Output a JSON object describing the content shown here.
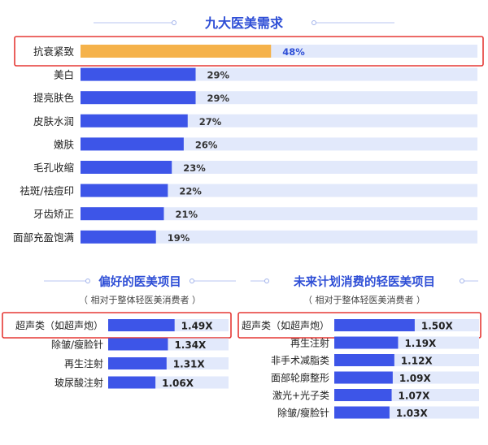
{
  "colors": {
    "bar": "#3d55e8",
    "highlight_bar": "#f5b24a",
    "track": "#e2e9fb",
    "title": "#2f4fd6",
    "frame": "#e53935",
    "label": "#222222"
  },
  "chart_data": [
    {
      "type": "bar",
      "orientation": "horizontal",
      "title": "九大医美需求",
      "categories": [
        "抗衰紧致",
        "美白",
        "提亮肤色",
        "皮肤水润",
        "嫩肤",
        "毛孔收缩",
        "祛斑/祛痘印",
        "牙齿矫正",
        "面部充盈饱满"
      ],
      "values": [
        48,
        29,
        29,
        27,
        26,
        23,
        22,
        21,
        19
      ],
      "data_labels": [
        "48%",
        "29%",
        "29%",
        "27%",
        "26%",
        "23%",
        "22%",
        "21%",
        "19%"
      ],
      "highlight_index": 0,
      "xlim": [
        0,
        100
      ]
    },
    {
      "type": "bar",
      "orientation": "horizontal",
      "title": "偏好的医美项目",
      "subtitle": "（ 相对于整体轻医美消费者 ）",
      "categories": [
        "超声类（如超声炮）",
        "除皱/瘦脸针",
        "再生注射",
        "玻尿酸注射"
      ],
      "values": [
        1.49,
        1.34,
        1.31,
        1.06
      ],
      "data_labels": [
        "1.49X",
        "1.34X",
        "1.31X",
        "1.06X"
      ],
      "highlight_index": 0,
      "xlim": [
        0,
        2.7
      ]
    },
    {
      "type": "bar",
      "orientation": "horizontal",
      "title": "未来计划消费的轻医美项目",
      "subtitle": "（ 相对于整体轻医美消费者 ）",
      "categories": [
        "超声类（如超声炮）",
        "再生注射",
        "非手术减脂类",
        "面部轮廓整形",
        "激光+光子类",
        "除皱/瘦脸针"
      ],
      "values": [
        1.5,
        1.19,
        1.12,
        1.09,
        1.07,
        1.03
      ],
      "data_labels": [
        "1.50X",
        "1.19X",
        "1.12X",
        "1.09X",
        "1.07X",
        "1.03X"
      ],
      "highlight_index": 0,
      "xlim": [
        0,
        2.7
      ]
    }
  ]
}
